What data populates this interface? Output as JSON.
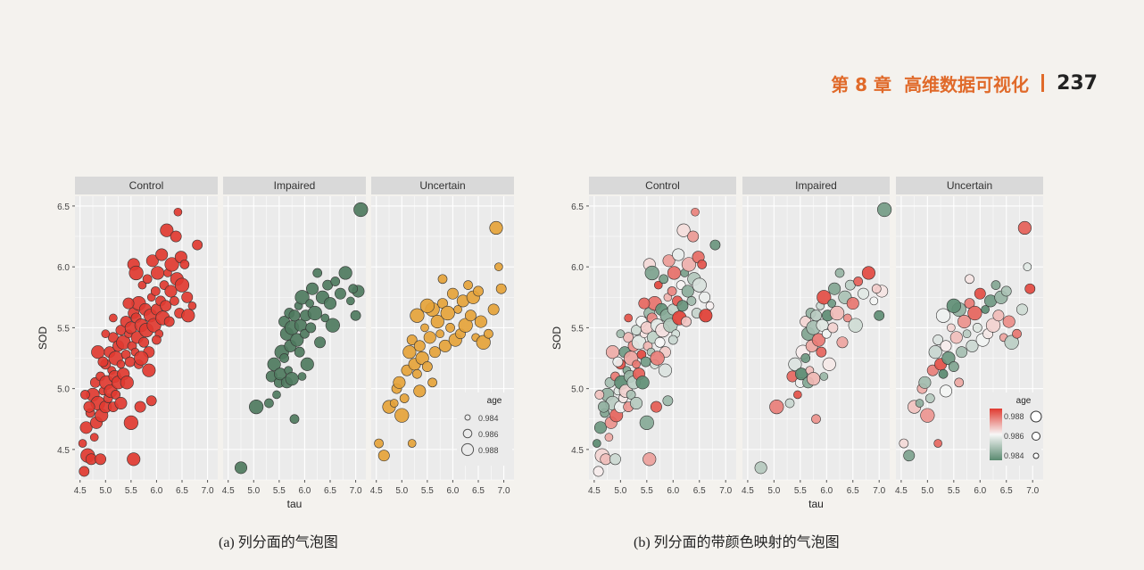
{
  "header": {
    "chapter": "第 8 章",
    "title": "高维数据可视化",
    "page_number": "237",
    "accent_color": "#e06a2a"
  },
  "captions": {
    "a": "(a) 列分面的气泡图",
    "b": "(b) 列分面的带颜色映射的气泡图"
  },
  "chart_data": [
    {
      "type": "scatter",
      "id": "a",
      "xlabel": "tau",
      "ylabel": "SOD",
      "xlim": [
        4.4,
        7.2
      ],
      "ylim": [
        4.25,
        6.58
      ],
      "xticks": [
        "4.5",
        "5.0",
        "5.5",
        "6.0",
        "6.5",
        "7.0"
      ],
      "yticks": [
        "4.5",
        "5.0",
        "5.5",
        "6.0",
        "6.5"
      ],
      "facets": [
        "Control",
        "Impaired",
        "Uncertain"
      ],
      "facet_colors": {
        "Control": "#e03a30",
        "Impaired": "#4e7a5e",
        "Uncertain": "#e5a33a"
      },
      "legend": {
        "title": "age",
        "labels": [
          "0.984",
          "0.986",
          "0.988"
        ],
        "position": "inside-bottom-right"
      },
      "grid": true,
      "series": [
        {
          "name": "Control",
          "points": [
            [
              4.55,
              4.55
            ],
            [
              4.58,
              4.32
            ],
            [
              4.62,
              4.68
            ],
            [
              4.65,
              4.45
            ],
            [
              4.7,
              4.8
            ],
            [
              4.72,
              4.42
            ],
            [
              4.75,
              4.95
            ],
            [
              4.78,
              4.6
            ],
            [
              4.8,
              5.05
            ],
            [
              4.82,
              4.72
            ],
            [
              4.85,
              4.88
            ],
            [
              4.9,
              5.1
            ],
            [
              4.9,
              4.42
            ],
            [
              4.92,
              4.78
            ],
            [
              4.95,
              4.98
            ],
            [
              5.0,
              5.2
            ],
            [
              5.0,
              4.85
            ],
            [
              5.02,
              5.05
            ],
            [
              5.05,
              4.92
            ],
            [
              5.08,
              5.3
            ],
            [
              5.1,
              4.98
            ],
            [
              5.12,
              5.15
            ],
            [
              5.15,
              5.42
            ],
            [
              5.18,
              5.1
            ],
            [
              5.2,
              5.25
            ],
            [
              5.2,
              4.95
            ],
            [
              5.25,
              5.35
            ],
            [
              5.25,
              5.05
            ],
            [
              5.3,
              5.2
            ],
            [
              5.3,
              5.48
            ],
            [
              5.35,
              5.12
            ],
            [
              5.35,
              5.38
            ],
            [
              5.4,
              5.28
            ],
            [
              5.4,
              5.55
            ],
            [
              5.42,
              5.05
            ],
            [
              5.45,
              5.45
            ],
            [
              5.48,
              5.22
            ],
            [
              5.5,
              5.5
            ],
            [
              5.5,
              4.72
            ],
            [
              5.52,
              5.35
            ],
            [
              5.55,
              5.62
            ],
            [
              5.55,
              4.42
            ],
            [
              5.58,
              5.3
            ],
            [
              5.6,
              5.58
            ],
            [
              5.62,
              5.42
            ],
            [
              5.65,
              5.7
            ],
            [
              5.65,
              5.2
            ],
            [
              5.68,
              4.85
            ],
            [
              5.7,
              5.52
            ],
            [
              5.72,
              5.85
            ],
            [
              5.75,
              5.38
            ],
            [
              5.78,
              5.65
            ],
            [
              5.8,
              5.48
            ],
            [
              5.82,
              5.9
            ],
            [
              5.85,
              5.3
            ],
            [
              5.88,
              5.6
            ],
            [
              5.9,
              5.75
            ],
            [
              5.9,
              4.9
            ],
            [
              5.92,
              6.05
            ],
            [
              5.95,
              5.52
            ],
            [
              5.98,
              5.8
            ],
            [
              6.0,
              5.65
            ],
            [
              6.02,
              5.95
            ],
            [
              6.05,
              5.45
            ],
            [
              6.08,
              5.72
            ],
            [
              6.1,
              6.1
            ],
            [
              6.12,
              5.58
            ],
            [
              6.15,
              5.85
            ],
            [
              6.18,
              5.68
            ],
            [
              6.2,
              6.3
            ],
            [
              6.22,
              5.95
            ],
            [
              6.25,
              5.55
            ],
            [
              6.28,
              5.8
            ],
            [
              6.3,
              6.02
            ],
            [
              6.35,
              5.72
            ],
            [
              6.38,
              6.25
            ],
            [
              6.4,
              5.9
            ],
            [
              6.42,
              6.45
            ],
            [
              6.45,
              5.62
            ],
            [
              6.48,
              6.08
            ],
            [
              6.5,
              5.85
            ],
            [
              6.55,
              6.02
            ],
            [
              6.6,
              5.75
            ],
            [
              6.62,
              5.6
            ],
            [
              6.7,
              5.68
            ],
            [
              6.8,
              6.18
            ],
            [
              5.55,
              6.02
            ],
            [
              5.6,
              5.95
            ],
            [
              4.6,
              4.95
            ],
            [
              4.68,
              4.85
            ],
            [
              4.85,
              5.3
            ],
            [
              5.0,
              5.45
            ],
            [
              5.15,
              4.85
            ],
            [
              5.3,
              4.88
            ],
            [
              5.7,
              5.25
            ],
            [
              6.0,
              5.4
            ],
            [
              5.45,
              5.7
            ],
            [
              5.85,
              5.15
            ],
            [
              5.15,
              5.58
            ],
            [
              4.95,
              5.22
            ]
          ]
        },
        {
          "name": "Impaired",
          "points": [
            [
              4.75,
              4.35
            ],
            [
              5.05,
              4.85
            ],
            [
              5.3,
              4.88
            ],
            [
              5.35,
              5.1
            ],
            [
              5.4,
              5.2
            ],
            [
              5.45,
              4.95
            ],
            [
              5.5,
              5.05
            ],
            [
              5.52,
              5.12
            ],
            [
              5.55,
              5.3
            ],
            [
              5.6,
              5.25
            ],
            [
              5.6,
              5.55
            ],
            [
              5.65,
              5.45
            ],
            [
              5.68,
              5.15
            ],
            [
              5.7,
              5.62
            ],
            [
              5.72,
              5.35
            ],
            [
              5.75,
              5.5
            ],
            [
              5.8,
              4.75
            ],
            [
              5.8,
              5.6
            ],
            [
              5.85,
              5.4
            ],
            [
              5.88,
              5.68
            ],
            [
              5.9,
              5.3
            ],
            [
              5.92,
              5.52
            ],
            [
              5.95,
              5.75
            ],
            [
              6.0,
              5.45
            ],
            [
              6.02,
              5.6
            ],
            [
              6.05,
              5.2
            ],
            [
              6.1,
              5.7
            ],
            [
              6.12,
              5.5
            ],
            [
              6.15,
              5.82
            ],
            [
              6.2,
              5.62
            ],
            [
              6.25,
              5.95
            ],
            [
              6.3,
              5.38
            ],
            [
              6.35,
              5.75
            ],
            [
              6.4,
              5.58
            ],
            [
              6.45,
              5.85
            ],
            [
              6.5,
              5.7
            ],
            [
              6.55,
              5.52
            ],
            [
              6.6,
              5.88
            ],
            [
              6.7,
              5.78
            ],
            [
              6.8,
              5.95
            ],
            [
              6.9,
              5.72
            ],
            [
              7.0,
              5.6
            ],
            [
              7.05,
              5.8
            ],
            [
              7.1,
              6.47
            ],
            [
              6.95,
              5.82
            ],
            [
              5.65,
              5.05
            ],
            [
              5.75,
              5.08
            ],
            [
              5.95,
              5.1
            ]
          ]
        },
        {
          "name": "Uncertain",
          "points": [
            [
              4.55,
              4.55
            ],
            [
              4.65,
              4.45
            ],
            [
              4.75,
              4.85
            ],
            [
              4.85,
              4.88
            ],
            [
              4.9,
              5.0
            ],
            [
              4.95,
              5.05
            ],
            [
              5.0,
              4.78
            ],
            [
              5.05,
              4.92
            ],
            [
              5.1,
              5.15
            ],
            [
              5.15,
              5.3
            ],
            [
              5.2,
              4.55
            ],
            [
              5.2,
              5.4
            ],
            [
              5.25,
              5.2
            ],
            [
              5.3,
              5.6
            ],
            [
              5.3,
              5.12
            ],
            [
              5.35,
              5.35
            ],
            [
              5.4,
              5.25
            ],
            [
              5.45,
              5.5
            ],
            [
              5.5,
              5.18
            ],
            [
              5.55,
              5.42
            ],
            [
              5.6,
              5.65
            ],
            [
              5.6,
              5.05
            ],
            [
              5.65,
              5.3
            ],
            [
              5.7,
              5.55
            ],
            [
              5.75,
              5.45
            ],
            [
              5.8,
              5.7
            ],
            [
              5.85,
              5.35
            ],
            [
              5.9,
              5.62
            ],
            [
              5.95,
              5.5
            ],
            [
              6.0,
              5.78
            ],
            [
              6.05,
              5.4
            ],
            [
              6.1,
              5.65
            ],
            [
              6.15,
              5.45
            ],
            [
              6.2,
              5.72
            ],
            [
              6.25,
              5.52
            ],
            [
              6.3,
              5.85
            ],
            [
              6.35,
              5.6
            ],
            [
              6.4,
              5.75
            ],
            [
              6.45,
              5.42
            ],
            [
              6.5,
              5.8
            ],
            [
              6.55,
              5.55
            ],
            [
              6.6,
              5.38
            ],
            [
              6.7,
              5.45
            ],
            [
              6.8,
              5.65
            ],
            [
              6.85,
              6.32
            ],
            [
              6.9,
              6.0
            ],
            [
              6.95,
              5.82
            ],
            [
              5.35,
              4.98
            ],
            [
              5.5,
              5.68
            ],
            [
              5.8,
              5.9
            ]
          ]
        }
      ]
    },
    {
      "type": "scatter",
      "id": "b",
      "xlabel": "tau",
      "ylabel": "SOD",
      "xlim": [
        4.4,
        7.2
      ],
      "ylim": [
        4.25,
        6.58
      ],
      "xticks": [
        "4.5",
        "5.0",
        "5.5",
        "6.0",
        "6.5",
        "7.0"
      ],
      "yticks": [
        "4.5",
        "5.0",
        "5.5",
        "6.0",
        "6.5"
      ],
      "facets": [
        "Control",
        "Impaired",
        "Uncertain"
      ],
      "color_scale": {
        "low": "#5a8a70",
        "mid": "#f7f7f7",
        "high": "#e03a30"
      },
      "legend": {
        "title": "age",
        "labels": [
          "0.988",
          "0.986",
          "0.984"
        ],
        "position": "inside-bottom-right"
      },
      "grid": true,
      "series_from": "a"
    }
  ]
}
